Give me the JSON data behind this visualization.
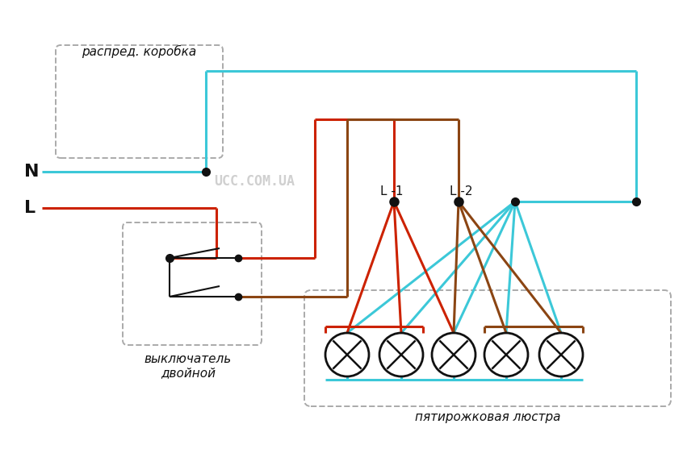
{
  "bg_color": "#ffffff",
  "wire_cyan": "#3cc8d8",
  "wire_red": "#cc2200",
  "wire_brown": "#8B4513",
  "wire_black": "#111111",
  "dash_color": "#aaaaaa",
  "text_color": "#111111",
  "watermark_color": "#c8c8c8",
  "label_N": "N",
  "label_L": "L",
  "label_L1": "L -1",
  "label_L2": "L -2",
  "label_distbox": "распред. коробка",
  "label_switch": "выключатель",
  "label_switch2": "двойной",
  "label_chandelier": "пятирожковая люстра",
  "watermark": "UCC.COM.UA",
  "lw": 2.2
}
